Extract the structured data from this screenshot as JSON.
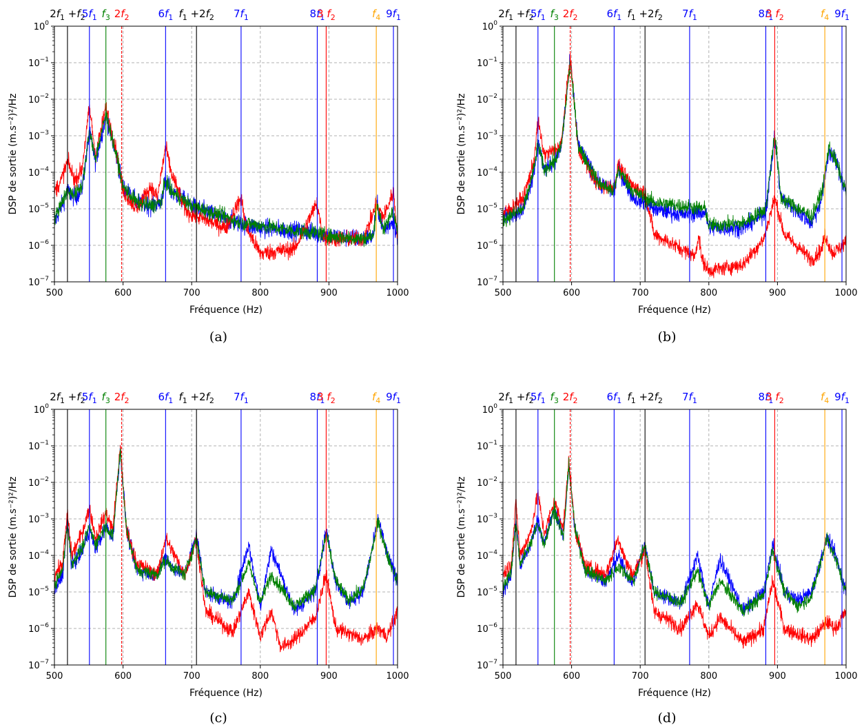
{
  "figure": {
    "xlabel": "Fréquence (Hz)",
    "ylabel": "DSP de sortie (m.s⁻²)²/Hz",
    "xlim": [
      500,
      1000
    ],
    "ylim_exp": [
      -7,
      0
    ],
    "log_y": true,
    "grid": "dashed",
    "x_ticks": [
      500,
      600,
      700,
      800,
      900,
      1000
    ],
    "y_tick_exponents": [
      -7,
      -6,
      -5,
      -4,
      -3,
      -2,
      -1,
      0
    ],
    "series_colors": {
      "blue": "#0000ff",
      "red": "#ff0000",
      "green": "#008000"
    },
    "harmonic_lines": [
      {
        "id": "2f1+f2",
        "x": 519,
        "color": "#000000",
        "style": "solid",
        "parts": [
          {
            "t": "2"
          },
          {
            "t": "f",
            "it": true
          },
          {
            "t": "1",
            "sub": true
          },
          {
            "t": " +"
          },
          {
            "t": "f",
            "it": true
          },
          {
            "t": "2",
            "sub": true
          }
        ]
      },
      {
        "id": "5f1",
        "x": 551,
        "color": "#0000ff",
        "style": "solid",
        "parts": [
          {
            "t": "5"
          },
          {
            "t": "f",
            "it": true
          },
          {
            "t": "1",
            "sub": true
          }
        ]
      },
      {
        "id": "f3",
        "x": 575,
        "color": "#008000",
        "style": "solid",
        "parts": [
          {
            "t": "f",
            "it": true
          },
          {
            "t": "3",
            "sub": true
          }
        ]
      },
      {
        "id": "2f2",
        "x": 598,
        "color": "#ff0000",
        "style": "dashed",
        "parts": [
          {
            "t": "2"
          },
          {
            "t": "f",
            "it": true
          },
          {
            "t": "2",
            "sub": true
          }
        ]
      },
      {
        "id": "6f1",
        "x": 662,
        "color": "#0000ff",
        "style": "solid",
        "parts": [
          {
            "t": "6"
          },
          {
            "t": "f",
            "it": true
          },
          {
            "t": "1",
            "sub": true
          }
        ]
      },
      {
        "id": "f1+2f2",
        "x": 707,
        "color": "#000000",
        "style": "solid",
        "parts": [
          {
            "t": "f",
            "it": true
          },
          {
            "t": "1",
            "sub": true
          },
          {
            "t": " +2"
          },
          {
            "t": "f",
            "it": true
          },
          {
            "t": "2",
            "sub": true
          }
        ]
      },
      {
        "id": "7f1",
        "x": 772,
        "color": "#0000ff",
        "style": "solid",
        "parts": [
          {
            "t": "7"
          },
          {
            "t": "f",
            "it": true
          },
          {
            "t": "1",
            "sub": true
          }
        ]
      },
      {
        "id": "8f1",
        "x": 883,
        "color": "#0000ff",
        "style": "solid",
        "parts": [
          {
            "t": "8"
          },
          {
            "t": "f",
            "it": true
          },
          {
            "t": "1",
            "sub": true
          }
        ]
      },
      {
        "id": "3f2",
        "x": 896,
        "color": "#ff0000",
        "style": "solid",
        "parts": [
          {
            "t": "3 "
          },
          {
            "t": "f",
            "it": true
          },
          {
            "t": "2",
            "sub": true
          }
        ]
      },
      {
        "id": "f4",
        "x": 969,
        "color": "#ffa500",
        "style": "solid",
        "parts": [
          {
            "t": "f",
            "it": true
          },
          {
            "t": "4",
            "sub": true
          }
        ]
      },
      {
        "id": "9f1",
        "x": 994,
        "color": "#0000ff",
        "style": "solid",
        "parts": [
          {
            "t": "9"
          },
          {
            "t": "f",
            "it": true
          },
          {
            "t": "1",
            "sub": true
          }
        ]
      }
    ]
  },
  "chart_data": [
    {
      "type": "line",
      "caption": "(a)",
      "x_range": [
        500,
        1000
      ],
      "y_range": [
        1e-07,
        1
      ],
      "y_scale": "log",
      "series": [
        {
          "color": "blue",
          "x": [
            500,
            510,
            519,
            530,
            540,
            551,
            560,
            575,
            590,
            600,
            620,
            640,
            655,
            662,
            670,
            700,
            750,
            772,
            780,
            800,
            850,
            883,
            890,
            900,
            950,
            965,
            969,
            980,
            994,
            1000
          ],
          "y": [
            4e-06,
            1.2e-05,
            3e-05,
            2e-05,
            3.5e-05,
            0.0012,
            0.0002,
            0.0035,
            0.0003,
            4e-05,
            1.5e-05,
            1.2e-05,
            1.5e-05,
            6e-05,
            3e-05,
            1.2e-05,
            5e-06,
            4e-06,
            3.5e-06,
            3e-06,
            2.5e-06,
            2.2e-06,
            2e-06,
            1.8e-06,
            1.5e-06,
            1.8e-06,
            1.5e-05,
            2.5e-06,
            5e-06,
            1.5e-06
          ],
          "noise": 0.5
        },
        {
          "color": "red",
          "x": [
            500,
            510,
            519,
            530,
            540,
            551,
            560,
            575,
            590,
            600,
            620,
            640,
            650,
            662,
            670,
            690,
            700,
            750,
            772,
            780,
            800,
            850,
            883,
            890,
            900,
            950,
            969,
            980,
            994,
            1000
          ],
          "y": [
            3e-05,
            6e-05,
            0.0002,
            6e-05,
            0.00012,
            0.006,
            0.0003,
            0.006,
            0.0004,
            3e-05,
            1e-05,
            4e-05,
            2e-05,
            0.0005,
            0.0001,
            1e-05,
            7e-06,
            3e-06,
            2e-05,
            3e-06,
            6e-07,
            8e-07,
            1.5e-05,
            2e-06,
            1.5e-06,
            1.5e-06,
            1.2e-05,
            6e-06,
            3e-05,
            2e-06
          ],
          "noise": 0.45
        },
        {
          "color": "green",
          "x": [
            500,
            510,
            519,
            530,
            540,
            551,
            560,
            575,
            590,
            600,
            620,
            640,
            655,
            662,
            670,
            700,
            750,
            772,
            780,
            800,
            850,
            883,
            890,
            900,
            950,
            965,
            969,
            980,
            994,
            1000
          ],
          "y": [
            5e-06,
            1.5e-05,
            3e-05,
            2.5e-05,
            4e-05,
            0.0012,
            0.00025,
            0.004,
            0.0003,
            4e-05,
            1.5e-05,
            1.2e-05,
            1.5e-05,
            6e-05,
            3e-05,
            1.2e-05,
            6e-06,
            4e-06,
            4e-06,
            3.5e-06,
            2.5e-06,
            2.2e-06,
            2e-06,
            1.8e-06,
            1.5e-06,
            1.8e-06,
            1.5e-05,
            2.5e-06,
            1e-05,
            2e-06
          ],
          "noise": 0.4
        }
      ]
    },
    {
      "type": "line",
      "caption": "(b)",
      "x_range": [
        500,
        1000
      ],
      "y_range": [
        1e-07,
        1
      ],
      "y_scale": "log",
      "series": [
        {
          "color": "blue",
          "x": [
            500,
            530,
            545,
            551,
            560,
            575,
            585,
            598,
            610,
            640,
            662,
            668,
            690,
            707,
            720,
            760,
            795,
            800,
            850,
            883,
            896,
            905,
            950,
            965,
            975,
            985,
            1000
          ],
          "y": [
            6e-06,
            1e-05,
            0.0001,
            0.0006,
            0.00012,
            0.0002,
            0.0005,
            0.12,
            0.0005,
            5e-05,
            3e-05,
            0.00012,
            2e-05,
            1.5e-05,
            1e-05,
            7e-06,
            8e-06,
            3e-06,
            3e-06,
            8e-06,
            0.001,
            2e-05,
            4e-06,
            2e-05,
            0.0004,
            0.0002,
            3e-05
          ],
          "noise": 0.45
        },
        {
          "color": "red",
          "x": [
            500,
            530,
            545,
            551,
            560,
            575,
            585,
            598,
            610,
            640,
            662,
            668,
            690,
            707,
            720,
            760,
            780,
            785,
            790,
            800,
            850,
            880,
            896,
            910,
            950,
            965,
            969,
            980,
            1000
          ],
          "y": [
            7e-06,
            2e-05,
            0.0002,
            0.0025,
            0.0003,
            0.0004,
            0.0006,
            0.15,
            0.0004,
            4e-05,
            4e-05,
            0.00015,
            4e-05,
            3e-05,
            2e-06,
            8e-07,
            5e-07,
            2e-06,
            4e-07,
            2e-07,
            3e-07,
            1.5e-06,
            2e-05,
            2e-06,
            4e-07,
            8e-07,
            2e-06,
            6e-07,
            1.2e-06
          ],
          "noise": 0.4
        },
        {
          "color": "green",
          "x": [
            500,
            530,
            545,
            551,
            560,
            575,
            585,
            598,
            610,
            640,
            662,
            668,
            690,
            707,
            720,
            760,
            795,
            800,
            850,
            883,
            896,
            905,
            950,
            965,
            975,
            985,
            1000
          ],
          "y": [
            5e-06,
            1e-05,
            0.00012,
            0.0006,
            0.00012,
            0.0002,
            0.0005,
            0.1,
            0.0005,
            5e-05,
            3e-05,
            0.00012,
            3e-05,
            2e-05,
            1.5e-05,
            1.2e-05,
            1e-05,
            3.5e-06,
            4e-06,
            1e-05,
            0.0012,
            2e-05,
            6e-06,
            3e-05,
            0.0005,
            0.0002,
            3e-05
          ],
          "noise": 0.4
        }
      ]
    },
    {
      "type": "line",
      "caption": "(c)",
      "x_range": [
        500,
        1000
      ],
      "y_range": [
        1e-07,
        1
      ],
      "y_scale": "log",
      "series": [
        {
          "color": "blue",
          "x": [
            500,
            512,
            519,
            525,
            540,
            551,
            560,
            575,
            585,
            596,
            605,
            620,
            650,
            662,
            670,
            690,
            707,
            720,
            760,
            783,
            800,
            816,
            850,
            880,
            896,
            910,
            928,
            950,
            972,
            985,
            1000
          ],
          "y": [
            1e-05,
            3e-05,
            0.001,
            5e-05,
            0.00012,
            0.0005,
            0.00015,
            0.0006,
            0.0003,
            0.08,
            0.0005,
            4e-05,
            3e-05,
            0.0001,
            5e-05,
            3e-05,
            0.0004,
            1e-05,
            5e-06,
            0.0002,
            4e-06,
            0.00015,
            3e-06,
            1e-05,
            0.0005,
            2e-05,
            5e-06,
            1e-05,
            0.001,
            0.0001,
            2e-05
          ],
          "noise": 0.4
        },
        {
          "color": "red",
          "x": [
            500,
            512,
            519,
            525,
            540,
            551,
            560,
            575,
            585,
            596,
            605,
            620,
            650,
            662,
            670,
            690,
            707,
            720,
            760,
            783,
            800,
            816,
            830,
            850,
            880,
            896,
            910,
            950,
            972,
            985,
            1000
          ],
          "y": [
            3e-05,
            6e-05,
            0.0015,
            0.0001,
            0.0004,
            0.002,
            0.0003,
            0.0015,
            0.0005,
            0.09,
            0.0005,
            6e-05,
            3e-05,
            0.0003,
            0.00015,
            3e-05,
            0.0003,
            3e-06,
            8e-07,
            1e-05,
            6e-07,
            3e-06,
            3e-07,
            5e-07,
            2e-06,
            3e-05,
            1e-06,
            5e-07,
            1e-06,
            6e-07,
            3e-06
          ],
          "noise": 0.4
        },
        {
          "color": "green",
          "x": [
            500,
            512,
            519,
            525,
            540,
            551,
            560,
            575,
            585,
            596,
            605,
            620,
            650,
            662,
            670,
            690,
            707,
            720,
            760,
            783,
            800,
            816,
            850,
            880,
            896,
            910,
            928,
            950,
            972,
            985,
            1000
          ],
          "y": [
            1.5e-05,
            4e-05,
            0.0008,
            6e-05,
            0.00015,
            0.0006,
            0.0002,
            0.0007,
            0.0003,
            0.08,
            0.0005,
            4e-05,
            3e-05,
            8e-05,
            5e-05,
            3e-05,
            0.0003,
            1e-05,
            6e-06,
            6e-05,
            5e-06,
            3e-05,
            4e-06,
            1.2e-05,
            0.0004,
            2e-05,
            6e-06,
            1.2e-05,
            0.0008,
            0.0001,
            2e-05
          ],
          "noise": 0.35
        }
      ]
    },
    {
      "type": "line",
      "caption": "(d)",
      "x_range": [
        500,
        1000
      ],
      "y_range": [
        1e-07,
        1
      ],
      "y_scale": "log",
      "series": [
        {
          "color": "blue",
          "x": [
            500,
            512,
            519,
            525,
            540,
            551,
            560,
            575,
            588,
            596,
            605,
            620,
            650,
            668,
            680,
            690,
            707,
            720,
            760,
            783,
            800,
            816,
            850,
            880,
            893,
            910,
            930,
            950,
            972,
            985,
            1000
          ],
          "y": [
            1e-05,
            3e-05,
            0.001,
            5e-05,
            0.0002,
            0.001,
            0.0002,
            0.002,
            0.0003,
            0.03,
            0.0005,
            4e-05,
            2e-05,
            0.0001,
            3e-05,
            2e-05,
            0.0002,
            1e-05,
            5e-06,
            0.0001,
            4e-06,
            8e-05,
            3e-06,
            1e-05,
            0.0002,
            1e-05,
            6e-06,
            1e-05,
            0.0003,
            0.0001,
            1e-05
          ],
          "noise": 0.4
        },
        {
          "color": "red",
          "x": [
            500,
            512,
            519,
            525,
            540,
            551,
            560,
            575,
            588,
            596,
            605,
            620,
            650,
            668,
            680,
            690,
            707,
            720,
            760,
            783,
            800,
            816,
            850,
            880,
            893,
            910,
            950,
            972,
            985,
            1000
          ],
          "y": [
            3e-05,
            6e-05,
            0.003,
            0.0001,
            0.0004,
            0.005,
            0.0004,
            0.003,
            0.0006,
            0.04,
            0.0005,
            5e-05,
            3e-05,
            0.0003,
            6e-05,
            3e-05,
            0.00015,
            3e-06,
            1e-06,
            5e-06,
            6e-07,
            2e-06,
            4e-07,
            1e-06,
            2e-05,
            1e-06,
            5e-07,
            1.5e-06,
            1e-06,
            3e-06
          ],
          "noise": 0.4
        },
        {
          "color": "green",
          "x": [
            500,
            512,
            519,
            525,
            540,
            551,
            560,
            575,
            588,
            596,
            605,
            620,
            650,
            668,
            680,
            690,
            707,
            720,
            760,
            783,
            800,
            816,
            850,
            880,
            893,
            910,
            930,
            950,
            972,
            985,
            1000
          ],
          "y": [
            1.2e-05,
            4e-05,
            0.0008,
            6e-05,
            0.0002,
            0.0008,
            0.0002,
            0.002,
            0.0003,
            0.03,
            0.0005,
            4e-05,
            2e-05,
            5e-05,
            3e-05,
            2e-05,
            0.0002,
            1e-05,
            5e-06,
            4e-05,
            4e-06,
            2e-05,
            3e-06,
            8e-06,
            0.00015,
            1e-05,
            4e-06,
            8e-06,
            0.0003,
            8e-05,
            1e-05
          ],
          "noise": 0.35
        }
      ]
    }
  ]
}
